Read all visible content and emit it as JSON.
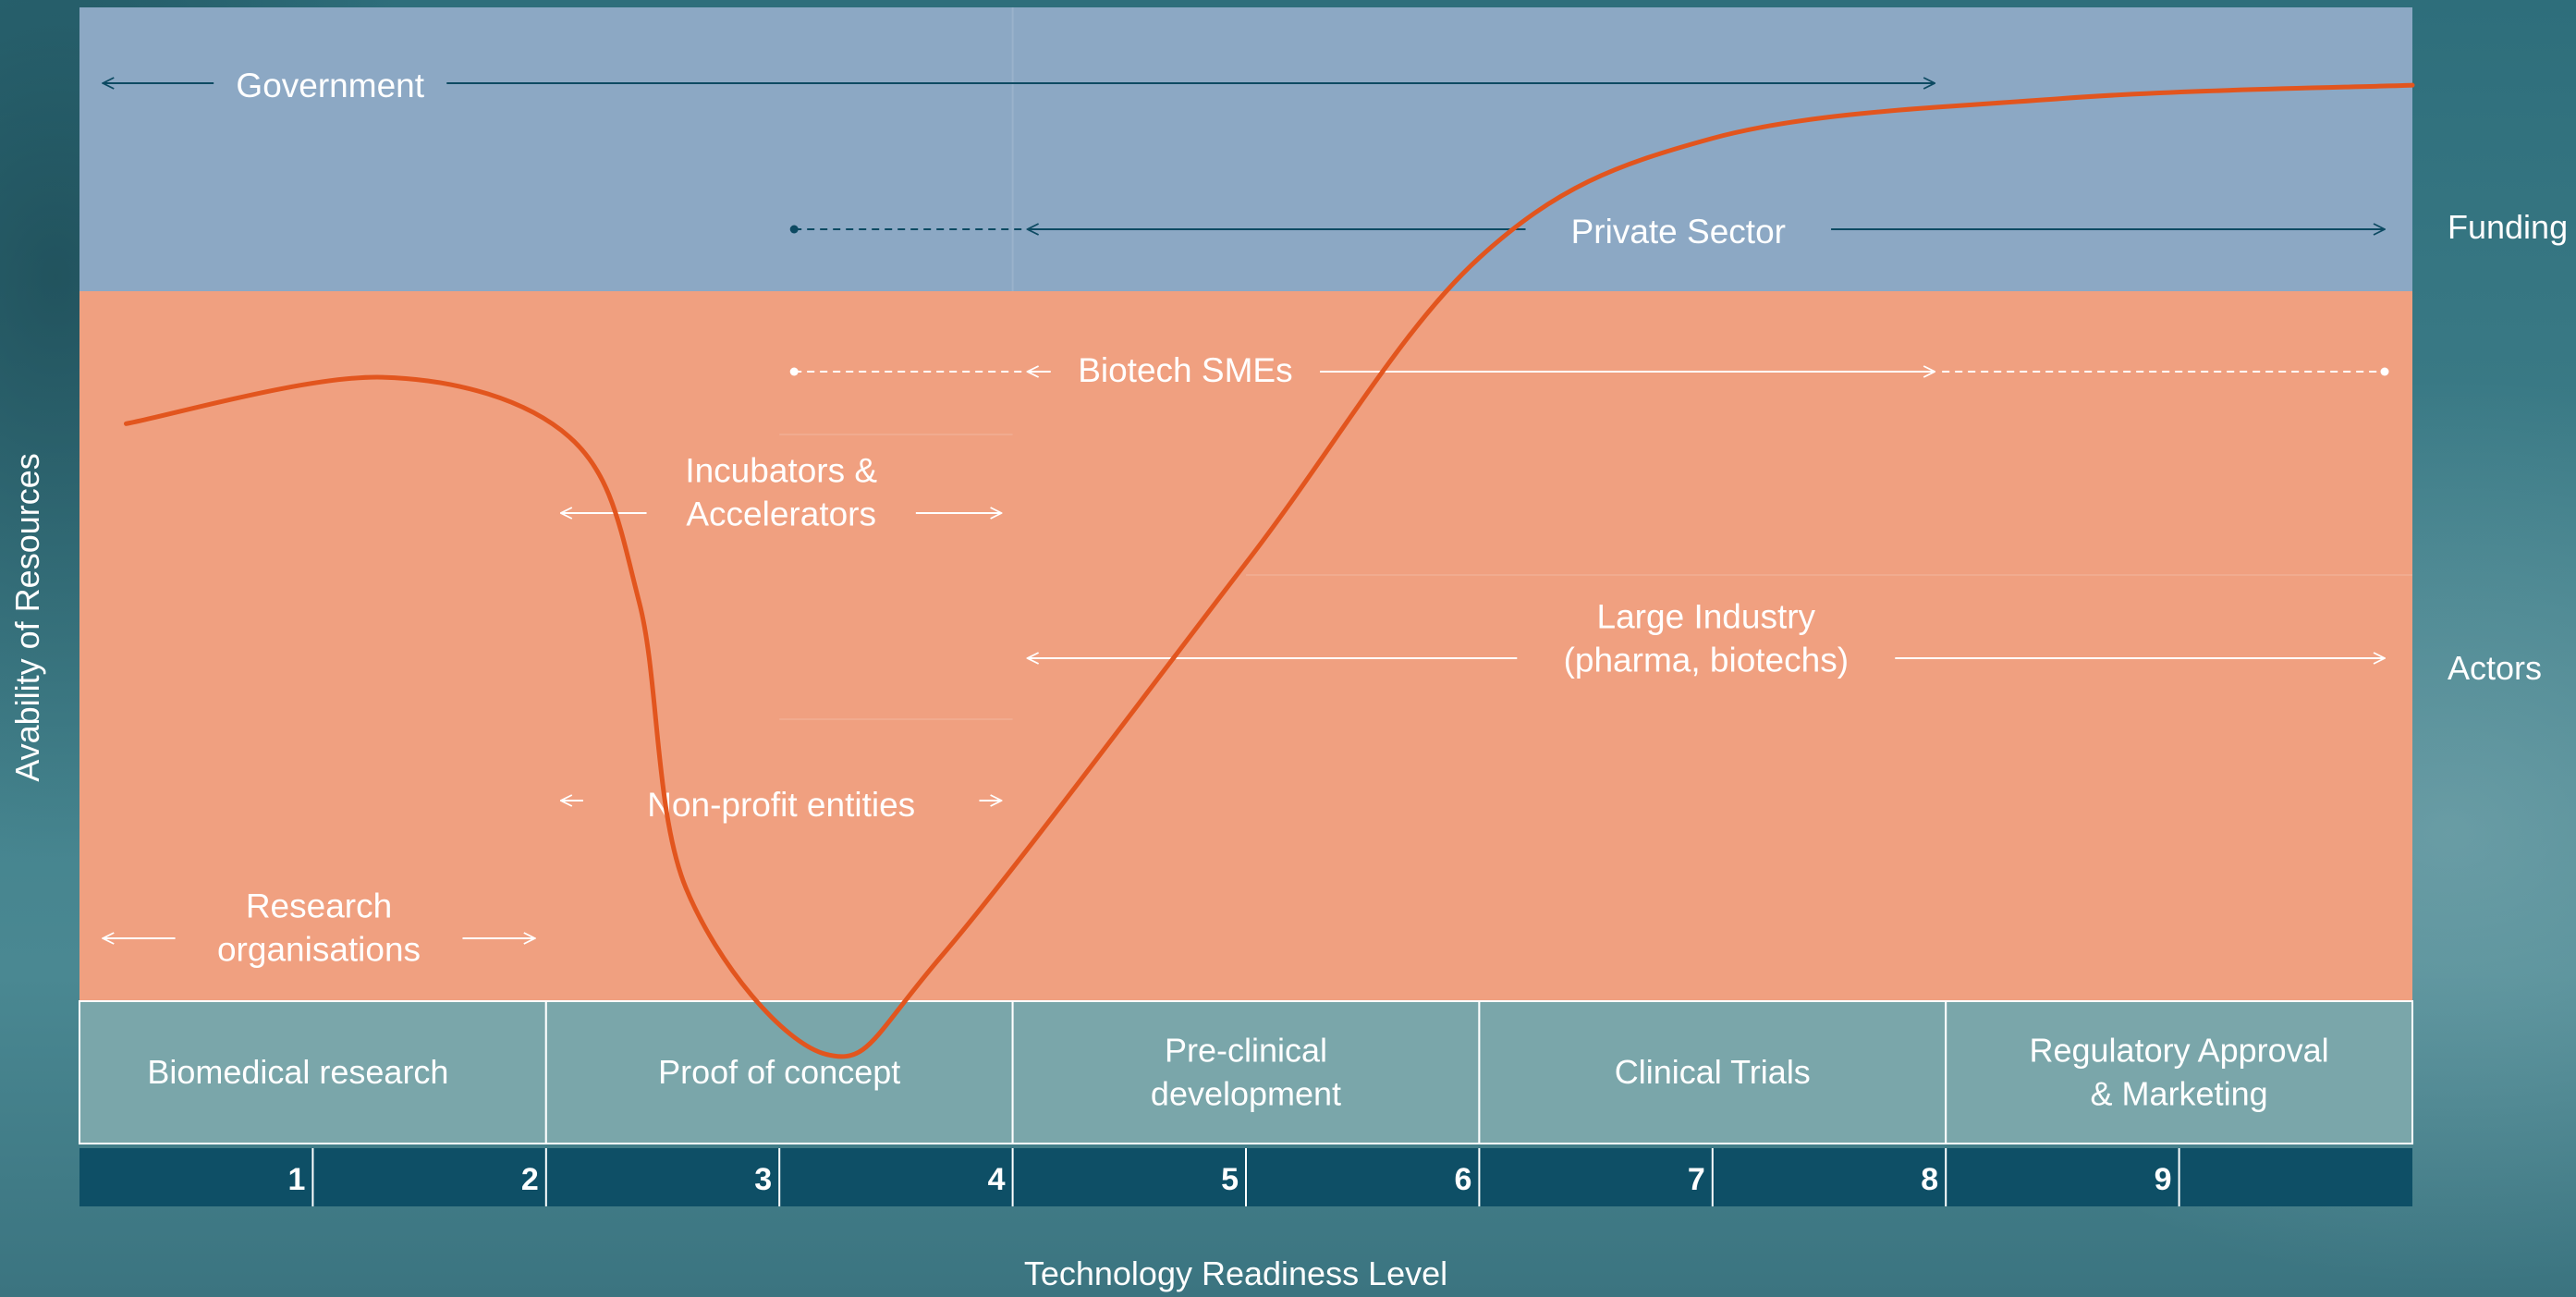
{
  "funding": [
    {
      "key": "government",
      "lines": [
        "Government"
      ],
      "from_trl": 0.1,
      "to_trl": 8,
      "dashed_from": null,
      "dashed_to": null,
      "color": "#0d4a62",
      "lane": "gov"
    },
    {
      "key": "private-sector",
      "lines": [
        "Private Sector"
      ],
      "from_trl": 4,
      "to_trl": 10,
      "dashed_from": 3,
      "dashed_to": null,
      "color": "#0d4a62",
      "lane": "priv"
    }
  ],
  "actors": [
    {
      "key": "biotech-smes",
      "lines": [
        "Biotech SMEs"
      ],
      "from_trl": 4,
      "to_trl": 8,
      "dashed_from": 3,
      "dashed_to": 10,
      "color": "#ffffff",
      "lane": "sme"
    },
    {
      "key": "incubators",
      "lines": [
        "Incubators &",
        "Accelerators"
      ],
      "from_trl": 2,
      "to_trl": 4,
      "dashed_from": null,
      "dashed_to": null,
      "color": "#ffffff",
      "lane": "inc"
    },
    {
      "key": "large-industry",
      "lines": [
        "Large Industry",
        "(pharma, biotechs)"
      ],
      "from_trl": 4,
      "to_trl": 10,
      "dashed_from": null,
      "dashed_to": null,
      "color": "#ffffff",
      "lane": "ind"
    },
    {
      "key": "non-profit",
      "lines": [
        "Non-profit entities"
      ],
      "from_trl": 2,
      "to_trl": 4,
      "dashed_from": null,
      "dashed_to": null,
      "color": "#ffffff",
      "lane": "np"
    },
    {
      "key": "research-orgs",
      "lines": [
        "Research",
        "organisations"
      ],
      "from_trl": 0.1,
      "to_trl": 2,
      "dashed_from": null,
      "dashed_to": null,
      "color": "#ffffff",
      "lane": "res"
    }
  ],
  "zones": {
    "funding_label": "Funding",
    "actors_label": "Actors",
    "funding_color": "#8ca8c4",
    "actors_color": "#f0a080"
  },
  "phases": [
    {
      "key": "biomedical-research",
      "lines": [
        "Biomedical research"
      ],
      "from_trl": 0,
      "to_trl": 2
    },
    {
      "key": "proof-of-concept",
      "lines": [
        "Proof of concept"
      ],
      "from_trl": 2,
      "to_trl": 4
    },
    {
      "key": "pre-clinical",
      "lines": [
        "Pre-clinical",
        "development"
      ],
      "from_trl": 4,
      "to_trl": 6
    },
    {
      "key": "clinical-trials",
      "lines": [
        "Clinical Trials"
      ],
      "from_trl": 6,
      "to_trl": 8
    },
    {
      "key": "regulatory",
      "lines": [
        "Regulatory Approval",
        "& Marketing"
      ],
      "from_trl": 8,
      "to_trl": 10
    }
  ],
  "phase_color": "#7aa6aa",
  "trl_bar_color": "#0e4f66",
  "trl_ticks": [
    "1",
    "2",
    "3",
    "4",
    "5",
    "6",
    "7",
    "8",
    "9"
  ],
  "xlabel": "Technology Readiness Level",
  "ylabel": "Avability of Resources",
  "curve": {
    "color": "#e2551e",
    "points": [
      [
        0.2,
        0.87
      ],
      [
        1.3,
        0.94
      ],
      [
        2.1,
        0.85
      ],
      [
        2.4,
        0.6
      ],
      [
        2.6,
        0.17
      ],
      [
        3.2,
        -0.08
      ],
      [
        3.7,
        0.07
      ],
      [
        5.0,
        0.66
      ],
      [
        6.0,
        1.12
      ],
      [
        7.0,
        1.3
      ],
      [
        8.5,
        1.36
      ],
      [
        10,
        1.38
      ]
    ]
  }
}
